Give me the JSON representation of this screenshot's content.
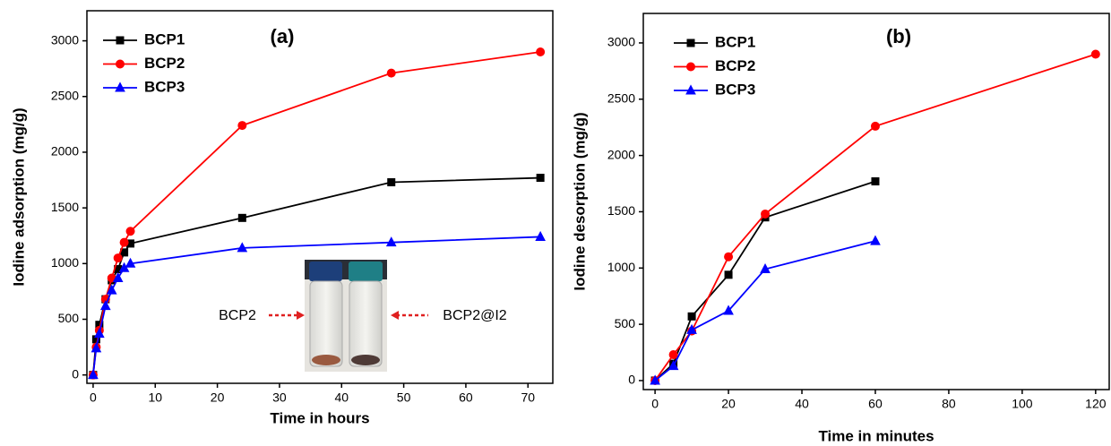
{
  "chart_data": [
    {
      "type": "line",
      "title": "(a)",
      "xlabel": "Time in hours",
      "ylabel": "Iodine adsorption (mg/g)",
      "x": [
        0,
        0.5,
        1,
        2,
        3,
        4,
        5,
        6,
        24,
        48,
        72
      ],
      "series": [
        {
          "name": "BCP1",
          "color": "#000000",
          "marker": "square",
          "values": [
            0,
            320,
            450,
            680,
            850,
            950,
            1100,
            1180,
            1410,
            1730,
            1770
          ]
        },
        {
          "name": "BCP2",
          "color": "#ff0000",
          "marker": "circle",
          "values": [
            0,
            250,
            400,
            680,
            870,
            1050,
            1190,
            1290,
            2240,
            2710,
            2900
          ]
        },
        {
          "name": "BCP3",
          "color": "#0000ff",
          "marker": "triangle",
          "values": [
            0,
            240,
            370,
            620,
            760,
            870,
            960,
            1000,
            1140,
            1190,
            1240
          ]
        }
      ],
      "xlim": [
        -1,
        74
      ],
      "xticks": [
        0,
        10,
        20,
        30,
        40,
        50,
        60,
        70
      ],
      "ylim": [
        -75,
        3270
      ],
      "yticks": [
        0,
        500,
        1000,
        1500,
        2000,
        2500,
        3000
      ],
      "legend": "upper left",
      "annotations": [
        "BCP2",
        "BCP2@I2"
      ]
    },
    {
      "type": "line",
      "title": "(b)",
      "xlabel": "Time in minutes",
      "ylabel": "Iodine desorption (mg/g)",
      "x": [
        0,
        5,
        10,
        20,
        30,
        60,
        120
      ],
      "series": [
        {
          "name": "BCP1",
          "color": "#000000",
          "marker": "square",
          "values": [
            0,
            150,
            570,
            940,
            1450,
            1770,
            null
          ]
        },
        {
          "name": "BCP2",
          "color": "#ff0000",
          "marker": "circle",
          "values": [
            0,
            230,
            440,
            1100,
            1480,
            2260,
            2900
          ]
        },
        {
          "name": "BCP3",
          "color": "#0000ff",
          "marker": "triangle",
          "values": [
            0,
            130,
            450,
            620,
            990,
            1240,
            null
          ]
        }
      ],
      "xlim": [
        -3.2,
        123.7
      ],
      "xticks": [
        0,
        20,
        40,
        60,
        80,
        100,
        120
      ],
      "ylim": [
        -80,
        3262
      ],
      "yticks": [
        0,
        500,
        1000,
        1500,
        2000,
        2500,
        3000
      ],
      "legend": "upper left"
    }
  ]
}
